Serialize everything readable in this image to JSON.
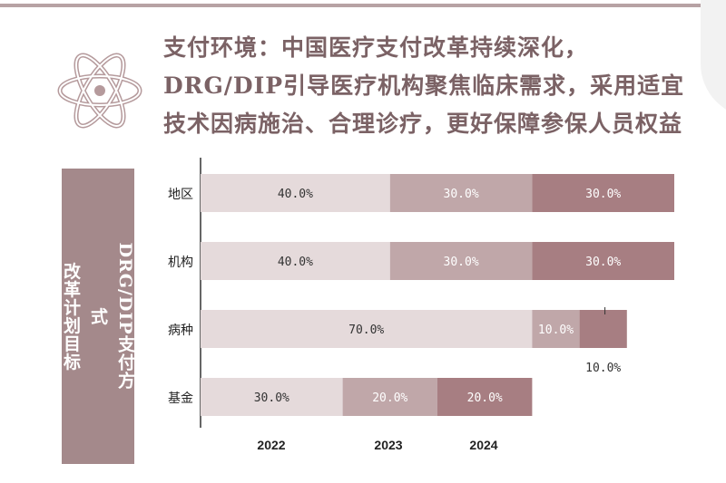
{
  "headline": "支付环境：中国医疗支付改革持续深化，DRG/DIP引导医疗机构聚焦临床需求，采用适宜技术因病施治、合理诊疗，更好保障参保人员权益",
  "side_panel": {
    "title": "DRG/DIP支付方式\n改革计划目标"
  },
  "colors": {
    "accent": "#7b6265",
    "panel": "#a4898b",
    "bar_2022": "#e5dadb",
    "bar_2023": "#c0a7a9",
    "bar_2024": "#a77e82",
    "rule": "#b7a2a4"
  },
  "icons": [
    "atom-icon"
  ],
  "chart_data": {
    "type": "bar",
    "orientation": "horizontal",
    "stacked": true,
    "categories": [
      "地区",
      "机构",
      "病种",
      "基金"
    ],
    "series": [
      {
        "name": "2022",
        "values": [
          40.0,
          40.0,
          70.0,
          30.0
        ],
        "labels": [
          "40.0%",
          "40.0%",
          "70.0%",
          "30.0%"
        ]
      },
      {
        "name": "2023",
        "values": [
          30.0,
          30.0,
          10.0,
          20.0
        ],
        "labels": [
          "30.0%",
          "30.0%",
          "10.0%",
          "20.0%"
        ]
      },
      {
        "name": "2024",
        "values": [
          30.0,
          30.0,
          10.0,
          20.0
        ],
        "labels": [
          "30.0%",
          "30.0%",
          "10.0%",
          "20.0%"
        ]
      }
    ],
    "xlim": [
      0,
      100
    ],
    "title": "",
    "xlabel": "",
    "ylabel": "",
    "grid": false,
    "legend": "bottom"
  }
}
